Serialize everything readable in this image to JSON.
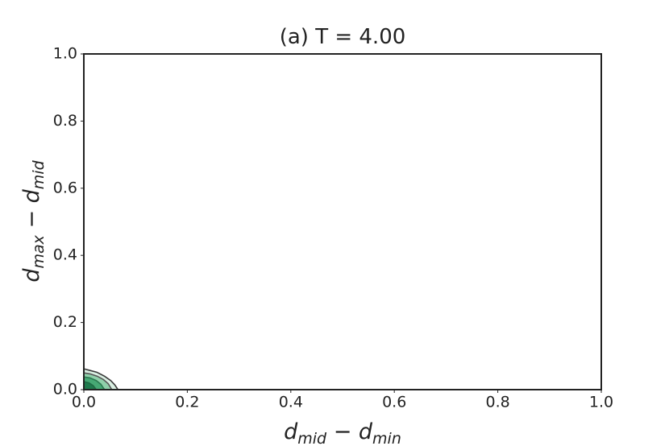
{
  "chart_data": {
    "type": "contour",
    "title": "(a)  T = 4.00",
    "xlabel": [
      {
        "text": "d"
      },
      {
        "text": "mid",
        "sub": true
      },
      {
        "text": " − "
      },
      {
        "text": "d"
      },
      {
        "text": "min",
        "sub": true
      }
    ],
    "ylabel": [
      {
        "text": "d"
      },
      {
        "text": "max",
        "sub": true
      },
      {
        "text": " − "
      },
      {
        "text": "d"
      },
      {
        "text": "mid",
        "sub": true
      }
    ],
    "xlim": [
      0,
      1
    ],
    "ylim": [
      0,
      1
    ],
    "xticks": [
      {
        "value": 0,
        "label": "0.0"
      },
      {
        "value": 0.2,
        "label": "0.2"
      },
      {
        "value": 0.4,
        "label": "0.4"
      },
      {
        "value": 0.6,
        "label": "0.6"
      },
      {
        "value": 0.8,
        "label": "0.8"
      },
      {
        "value": 1,
        "label": "1.0"
      }
    ],
    "yticks": [
      {
        "value": 0,
        "label": "0.0"
      },
      {
        "value": 0.2,
        "label": "0.2"
      },
      {
        "value": 0.4,
        "label": "0.4"
      },
      {
        "value": 0.6,
        "label": "0.6"
      },
      {
        "value": 0.8,
        "label": "0.8"
      },
      {
        "value": 1,
        "label": "1.0"
      }
    ],
    "contours": [
      {
        "fill": "#d9efe2",
        "color": "#3a3a3a",
        "x": [
          0,
          0,
          0.01,
          0.025,
          0.04,
          0.052,
          0.06,
          0.066
        ],
        "y": [
          0,
          0.062,
          0.058,
          0.052,
          0.04,
          0.027,
          0.014,
          0
        ]
      },
      {
        "fill": "#8fd0aa",
        "color": "#555555",
        "x": [
          0,
          0,
          0.012,
          0.026,
          0.038,
          0.047,
          0.054
        ],
        "y": [
          0,
          0.05,
          0.047,
          0.04,
          0.03,
          0.018,
          0
        ]
      },
      {
        "fill": "#46a874",
        "color": "#2b7a50",
        "x": [
          0,
          0,
          0.012,
          0.024,
          0.033,
          0.04
        ],
        "y": [
          0,
          0.038,
          0.035,
          0.027,
          0.016,
          0
        ]
      },
      {
        "fill": "#1f7a4d",
        "color": "#1f6b44",
        "x": [
          0,
          0,
          0.01,
          0.018,
          0.024
        ],
        "y": [
          0,
          0.024,
          0.02,
          0.012,
          0
        ]
      }
    ]
  }
}
